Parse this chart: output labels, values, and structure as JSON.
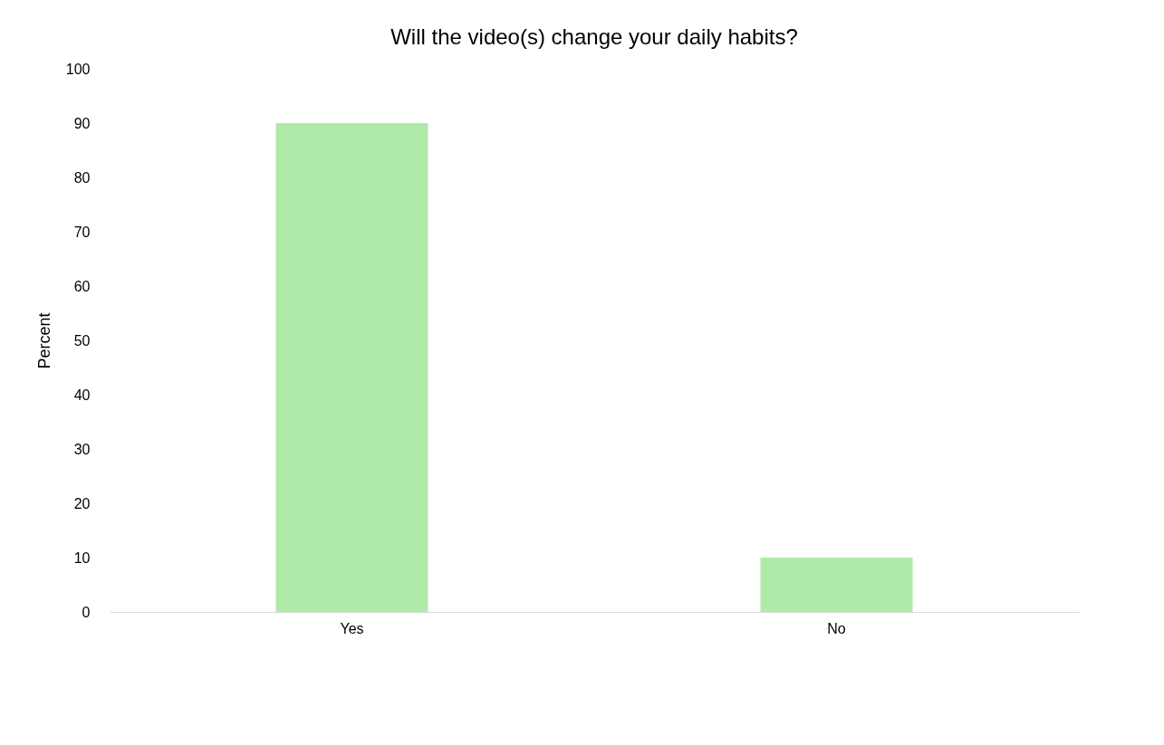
{
  "chart_data": {
    "type": "bar",
    "title": "Will the video(s) change your daily habits?",
    "ylabel": "Percent",
    "categories": [
      "Yes",
      "No"
    ],
    "values": [
      90,
      10
    ],
    "color": "#b0eaa8",
    "ylim": [
      0,
      100
    ],
    "yticks": [
      0,
      10,
      20,
      30,
      40,
      50,
      60,
      70,
      80,
      90,
      100
    ],
    "grid": false
  }
}
